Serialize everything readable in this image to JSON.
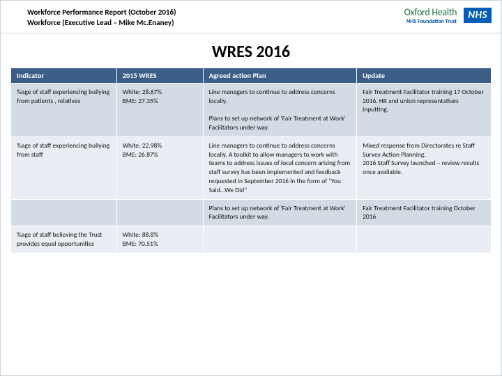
{
  "header": {
    "line1": "Workforce Performance Report (October 2016)",
    "line2": "Workforce (Executive Lead – Mike Mc.Enaney)"
  },
  "logos": {
    "oxford_top": "Oxford Health",
    "oxford_sub": "NHS Foundation Trust",
    "nhs": "NHS"
  },
  "title": "WRES 2016",
  "table": {
    "columns": [
      "Indicator",
      "2015 WRES",
      "Agreed action Plan",
      "Update"
    ],
    "col_widths_pct": [
      22,
      18,
      32,
      28
    ],
    "header_bg": "#3a5e87",
    "header_fg": "#ffffff",
    "row_bg_odd": "#d3dbe5",
    "row_bg_even": "#eaeef4",
    "rows": [
      {
        "indicator": "%age of staff experiencing bullying from patients , relatives",
        "wres": "White: 28.67%\nBME: 27.35%",
        "plan": "Line managers to continue to address concerns locally.\n\nPlans to set up network of 'Fair Treatment at Work' Facilitators under way.",
        "update": "Fair Treatment Facilitator training 17 October 2016. HR and union representatives inputting."
      },
      {
        "indicator": "%age of staff experiencing bullying from staff",
        "wres": "White: 22.98%\nBME: 26.87%",
        "plan": "Line managers to continue to address concerns locally. A toolkit to allow managers to work with teams to address issues of local concern arising from staff survey has been implemented and feedback requested in September 2016 in the form of \"You Said…We Did\"",
        "update": "Mixed response from Directorates re Staff Survey Action Planning.\n2016 Staff Survey launched – review results once available."
      },
      {
        "indicator": "",
        "wres": "",
        "plan": "Plans to set up network of 'Fair Treatment at Work' Facilitators under way.",
        "update": "Fair Treatment Facilitator training October 2016"
      },
      {
        "indicator": "%age of staff believing the Trust provides equal opportunities",
        "wres": "White: 88.8%\nBME: 70.51%",
        "plan": "",
        "update": ""
      }
    ]
  },
  "style": {
    "page_border": "#c9d2dc",
    "title_fontsize": 24,
    "header_fontsize": 11,
    "cell_fontsize": 9.5,
    "th_fontsize": 10.5
  }
}
